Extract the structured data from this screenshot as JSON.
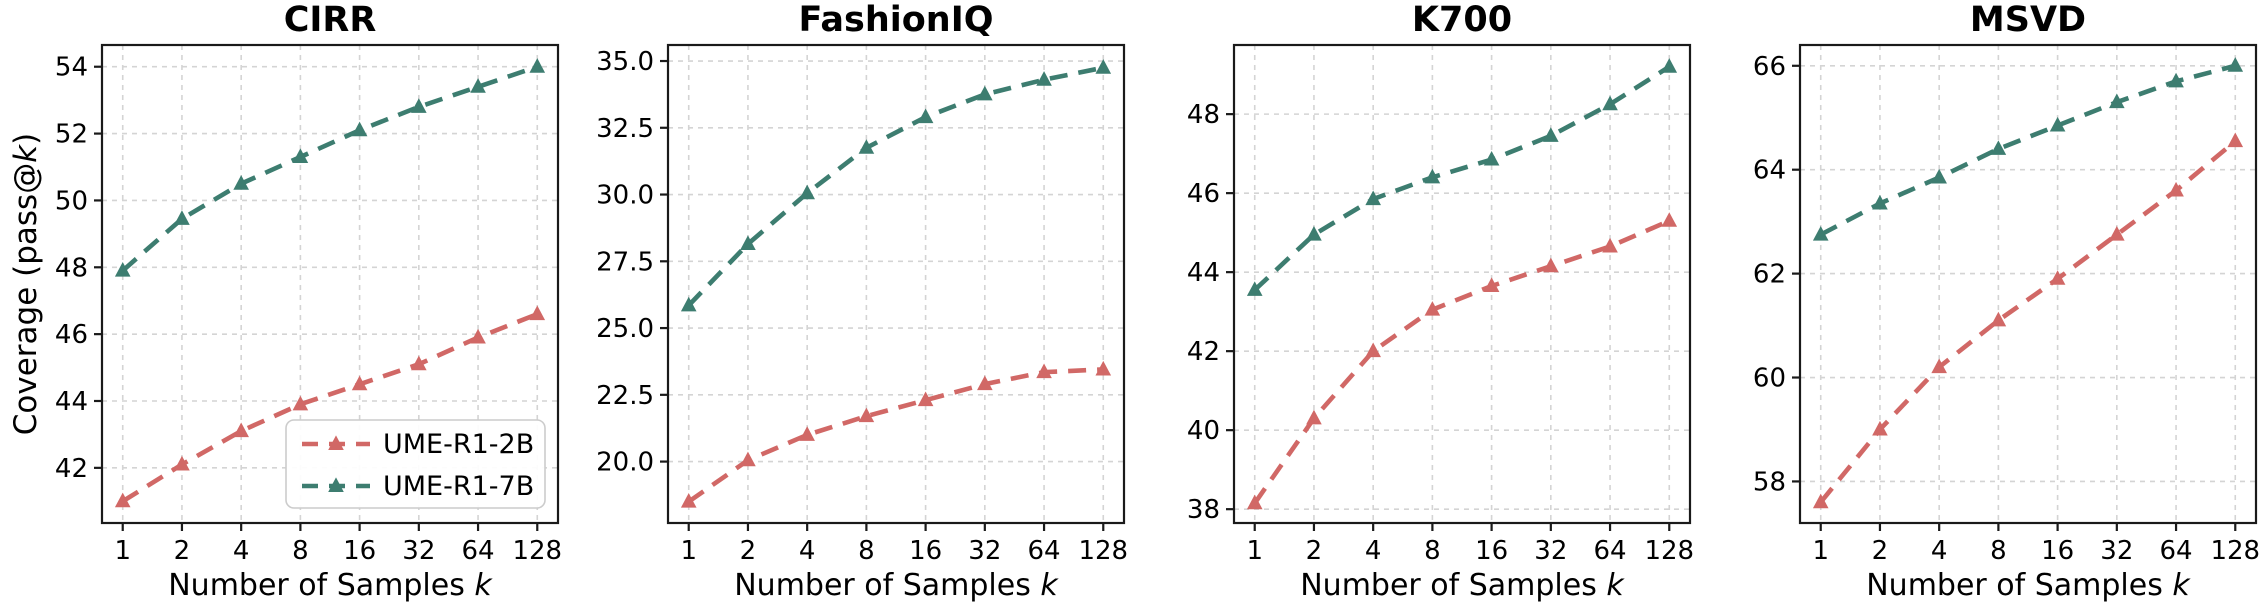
{
  "figure": {
    "xlabel": "Number of Samples k",
    "ylabel": "Coverage (pass@k)",
    "x_tick_labels": [
      "1",
      "2",
      "4",
      "8",
      "16",
      "32",
      "64",
      "128"
    ],
    "legend": {
      "items": [
        {
          "label": "UME-R1-2B",
          "color": "#D16866"
        },
        {
          "label": "UME-R1-7B",
          "color": "#3D7D70"
        }
      ],
      "location": "lower-right-of-first-panel"
    },
    "colors": {
      "series_2b": "#D16866",
      "series_7b": "#3D7D70",
      "grid": "#D4D4D4",
      "spine": "#1A1A1A",
      "text": "#000000",
      "background": "#FFFFFF",
      "legend_border": "#CCCCCC"
    }
  },
  "chart_data": [
    {
      "type": "line",
      "title": "CIRR",
      "x": [
        1,
        2,
        4,
        8,
        16,
        32,
        64,
        128
      ],
      "x_scale": "log2",
      "xlabel": "Number of Samples k",
      "ylabel": "Coverage (pass@k)",
      "grid": true,
      "line_style": "dashed",
      "marker": "triangle-up",
      "legend_position": "lower right",
      "show_ylabel": true,
      "show_legend": true,
      "ylim": [
        40.35,
        54.65
      ],
      "yticks": [
        42,
        44,
        46,
        48,
        50,
        52,
        54
      ],
      "ytick_labels": [
        "42",
        "44",
        "46",
        "48",
        "50",
        "52",
        "54"
      ],
      "series": [
        {
          "name": "UME-R1-2B",
          "color": "#D16866",
          "values": [
            41.0,
            42.1,
            43.1,
            43.9,
            44.5,
            45.1,
            45.9,
            46.6
          ]
        },
        {
          "name": "UME-R1-7B",
          "color": "#3D7D70",
          "values": [
            47.9,
            49.45,
            50.5,
            51.3,
            52.1,
            52.8,
            53.4,
            54.0
          ]
        }
      ]
    },
    {
      "type": "line",
      "title": "FashionIQ",
      "x": [
        1,
        2,
        4,
        8,
        16,
        32,
        64,
        128
      ],
      "x_scale": "log2",
      "xlabel": "Number of Samples k",
      "grid": true,
      "line_style": "dashed",
      "marker": "triangle-up",
      "show_ylabel": false,
      "show_legend": false,
      "ylim": [
        17.7,
        35.6
      ],
      "yticks": [
        20.0,
        22.5,
        25.0,
        27.5,
        30.0,
        32.5,
        35.0
      ],
      "ytick_labels": [
        "20.0",
        "22.5",
        "25.0",
        "27.5",
        "30.0",
        "32.5",
        "35.0"
      ],
      "series": [
        {
          "name": "UME-R1-2B",
          "color": "#D16866",
          "values": [
            18.5,
            20.05,
            21.0,
            21.7,
            22.3,
            22.9,
            23.35,
            23.45
          ]
        },
        {
          "name": "UME-R1-7B",
          "color": "#3D7D70",
          "values": [
            25.85,
            28.15,
            30.05,
            31.75,
            32.9,
            33.75,
            34.3,
            34.75
          ]
        }
      ]
    },
    {
      "type": "line",
      "title": "K700",
      "x": [
        1,
        2,
        4,
        8,
        16,
        32,
        64,
        128
      ],
      "x_scale": "log2",
      "xlabel": "Number of Samples k",
      "grid": true,
      "line_style": "dashed",
      "marker": "triangle-up",
      "show_ylabel": false,
      "show_legend": false,
      "ylim": [
        37.65,
        49.75
      ],
      "yticks": [
        38,
        40,
        42,
        44,
        46,
        48
      ],
      "ytick_labels": [
        "38",
        "40",
        "42",
        "44",
        "46",
        "48"
      ],
      "series": [
        {
          "name": "UME-R1-2B",
          "color": "#D16866",
          "values": [
            38.15,
            40.3,
            42.0,
            43.05,
            43.65,
            44.15,
            44.65,
            45.3
          ]
        },
        {
          "name": "UME-R1-7B",
          "color": "#3D7D70",
          "values": [
            43.55,
            44.95,
            45.85,
            46.4,
            46.85,
            47.45,
            48.25,
            49.2
          ]
        }
      ]
    },
    {
      "type": "line",
      "title": "MSVD",
      "x": [
        1,
        2,
        4,
        8,
        16,
        32,
        64,
        128
      ],
      "x_scale": "log2",
      "xlabel": "Number of Samples k",
      "grid": true,
      "line_style": "dashed",
      "marker": "triangle-up",
      "show_ylabel": false,
      "show_legend": false,
      "ylim": [
        57.2,
        66.4
      ],
      "yticks": [
        58,
        60,
        62,
        64,
        66
      ],
      "ytick_labels": [
        "58",
        "60",
        "62",
        "64",
        "66"
      ],
      "series": [
        {
          "name": "UME-R1-2B",
          "color": "#D16866",
          "values": [
            57.6,
            59.0,
            60.2,
            61.1,
            61.9,
            62.75,
            63.6,
            64.55
          ]
        },
        {
          "name": "UME-R1-7B",
          "color": "#3D7D70",
          "values": [
            62.75,
            63.35,
            63.85,
            64.4,
            64.85,
            65.3,
            65.7,
            66.0
          ]
        }
      ]
    }
  ]
}
